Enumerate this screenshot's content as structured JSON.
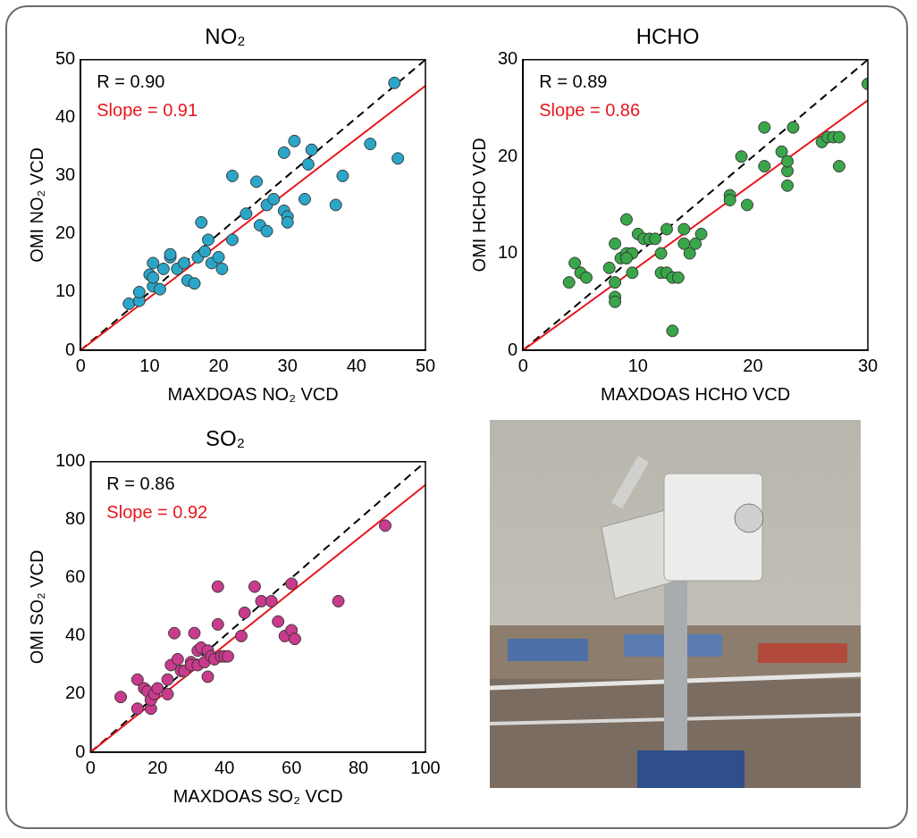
{
  "chart_data": [
    {
      "type": "scatter",
      "title": "NO₂",
      "x_label": "MAXDOAS NO₂ VCD",
      "y_label": "OMI NO₂ VCD",
      "color": "#2ba6c8",
      "marker": "circle",
      "grid": false,
      "xlim": [
        0,
        50
      ],
      "ylim": [
        0,
        50
      ],
      "xticks": [
        0,
        10,
        20,
        30,
        40,
        50
      ],
      "yticks": [
        0,
        10,
        20,
        30,
        40,
        50
      ],
      "x": [
        7,
        8.5,
        8.5,
        10,
        10.5,
        10.5,
        10.5,
        11.5,
        12,
        13,
        13,
        14,
        15,
        15.5,
        16.5,
        17,
        17.5,
        18,
        18.5,
        19,
        20,
        20.5,
        22,
        22,
        24,
        25.5,
        26,
        27,
        27,
        28,
        29.5,
        29.5,
        30,
        30,
        31,
        32.5,
        33,
        33.5,
        37,
        38,
        42,
        45.5,
        46
      ],
      "values": [
        8,
        8.5,
        10,
        13,
        11,
        12.5,
        15,
        10.5,
        14,
        16,
        16.5,
        14,
        15,
        12,
        11.5,
        16,
        22,
        17,
        19,
        15,
        16,
        14,
        30,
        19,
        23.5,
        29,
        21.5,
        25,
        20.5,
        26,
        24,
        34,
        23,
        22,
        36,
        26,
        32,
        34.5,
        25,
        30,
        35.5,
        46,
        33
      ],
      "reference_line": {
        "x": [
          0,
          50
        ],
        "values": [
          0,
          50
        ],
        "color": "#000000",
        "line_style": "dashed"
      },
      "fit_line": {
        "x": [
          0,
          50
        ],
        "values": [
          0,
          45.5
        ],
        "color": "#e8141c",
        "line_style": "solid"
      },
      "annotations": [
        {
          "text": "R = 0.90",
          "color": "#000000"
        },
        {
          "text": "Slope = 0.91",
          "color": "#e8141c"
        }
      ]
    },
    {
      "type": "scatter",
      "title": "HCHO",
      "x_label": "MAXDOAS HCHO VCD",
      "y_label": "OMI HCHO VCD",
      "color": "#3aa64a",
      "marker": "circle",
      "grid": false,
      "xlim": [
        0,
        30
      ],
      "ylim": [
        0,
        30
      ],
      "xticks": [
        0,
        10,
        20,
        30
      ],
      "yticks": [
        0,
        10,
        20,
        30
      ],
      "x": [
        4,
        4.5,
        5,
        5.5,
        7.5,
        8,
        8,
        8,
        8,
        8.5,
        9,
        9,
        9.5,
        9,
        9.5,
        10,
        10.5,
        11,
        11.5,
        12,
        12,
        12.5,
        12.5,
        13,
        13,
        13.5,
        14,
        14,
        14.5,
        15,
        15.5,
        18,
        18,
        19,
        19.5,
        21,
        21,
        22.5,
        23,
        23,
        23,
        23.5,
        26,
        26.5,
        27,
        27.5,
        27.5,
        30
      ],
      "values": [
        7,
        9,
        8,
        7.5,
        8.5,
        7,
        5.5,
        5,
        11,
        9.5,
        13.5,
        10,
        10,
        9.5,
        8,
        12,
        11.5,
        11.5,
        11.5,
        8,
        10,
        12.5,
        8,
        7.5,
        2,
        7.5,
        12.5,
        11,
        10,
        11,
        12,
        16,
        15.5,
        20,
        15,
        23,
        19,
        20.5,
        17,
        18.5,
        19.5,
        23,
        21.5,
        22,
        22,
        19,
        22,
        27.5
      ],
      "reference_line": {
        "x": [
          0,
          30
        ],
        "values": [
          0,
          30
        ],
        "color": "#000000",
        "line_style": "dashed"
      },
      "fit_line": {
        "x": [
          0,
          30
        ],
        "values": [
          0,
          25.8
        ],
        "color": "#e8141c",
        "line_style": "solid"
      },
      "annotations": [
        {
          "text": "R = 0.89",
          "color": "#000000"
        },
        {
          "text": "Slope = 0.86",
          "color": "#e8141c"
        }
      ]
    },
    {
      "type": "scatter",
      "title": "SO₂",
      "x_label": "MAXDOAS SO₂ VCD",
      "y_label": "OMI SO₂ VCD",
      "color": "#c93b8d",
      "marker": "circle",
      "grid": false,
      "xlim": [
        0,
        100
      ],
      "ylim": [
        0,
        100
      ],
      "xticks": [
        0,
        20,
        40,
        60,
        80,
        100
      ],
      "yticks": [
        0,
        20,
        40,
        60,
        80,
        100
      ],
      "x": [
        9,
        14,
        14,
        16,
        17,
        18,
        18,
        19,
        20,
        23,
        23,
        24,
        25,
        26,
        27,
        28,
        30,
        30,
        31,
        32,
        32,
        33,
        34,
        35,
        35,
        36,
        37,
        38,
        38,
        39,
        40,
        41,
        45,
        46,
        49,
        51,
        54,
        56,
        58,
        60,
        60,
        61,
        74,
        88
      ],
      "values": [
        19,
        25,
        15,
        22,
        21,
        15,
        18,
        20,
        22,
        20,
        25,
        30,
        41,
        32,
        28,
        28,
        31,
        30,
        41,
        30,
        35,
        36,
        31,
        26,
        35,
        33,
        32,
        57,
        44,
        33,
        33,
        33,
        40,
        48,
        57,
        52,
        52,
        45,
        40,
        42,
        58,
        39,
        52,
        78
      ],
      "reference_line": {
        "x": [
          0,
          100
        ],
        "values": [
          0,
          100
        ],
        "color": "#000000",
        "line_style": "dashed"
      },
      "fit_line": {
        "x": [
          0,
          100
        ],
        "values": [
          0,
          92
        ],
        "color": "#e8141c",
        "line_style": "solid"
      },
      "annotations": [
        {
          "text": "R = 0.86",
          "color": "#000000"
        },
        {
          "text": "Slope = 0.92",
          "color": "#e8141c"
        }
      ]
    }
  ]
}
